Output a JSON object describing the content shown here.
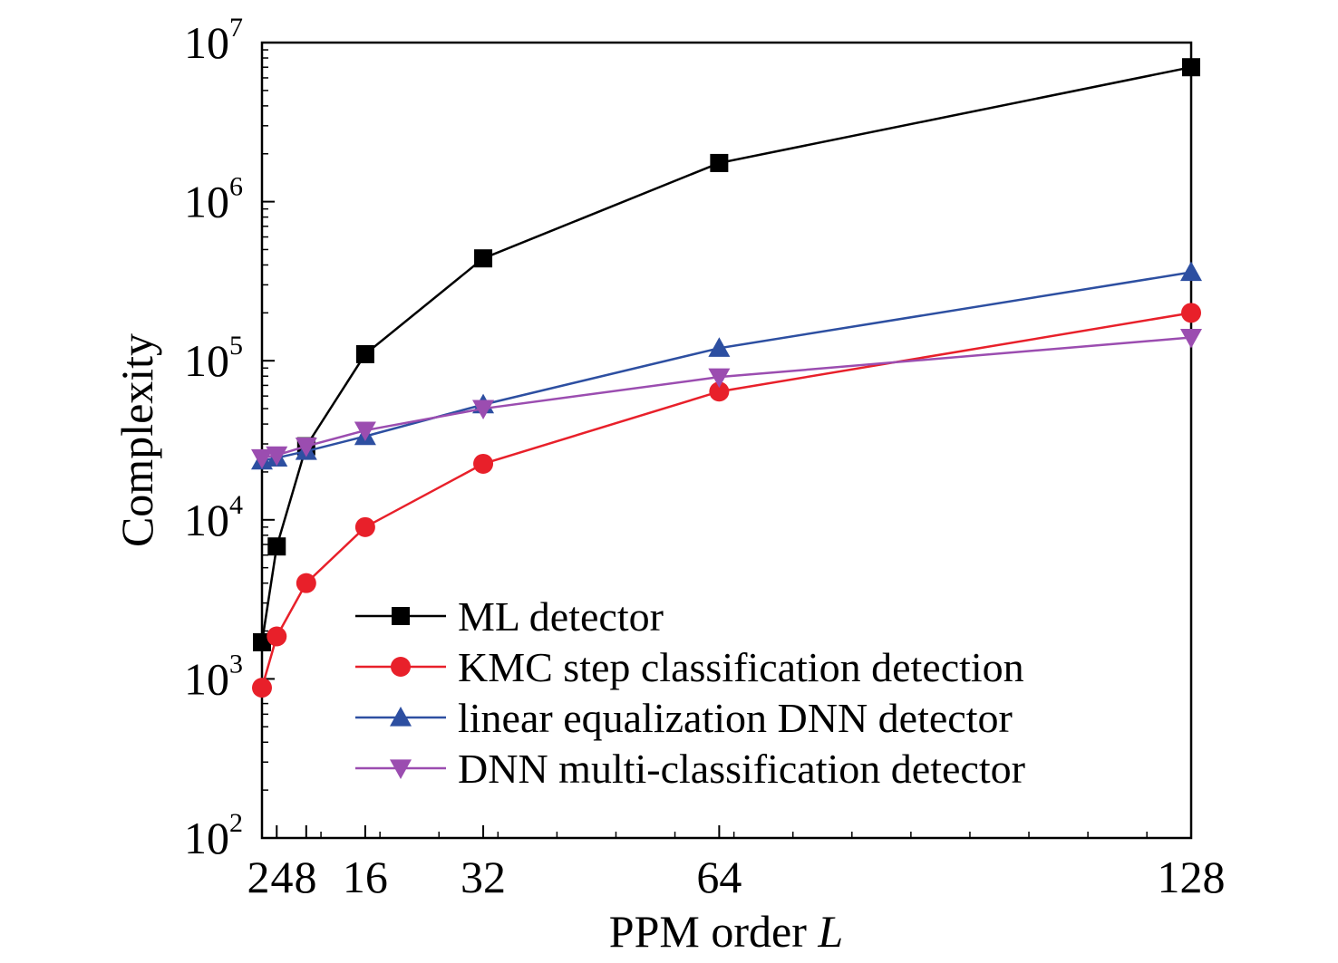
{
  "chart_data": {
    "type": "line",
    "xlabel": "PPM order",
    "xlabel_var": "L",
    "ylabel": "Complexity",
    "x": [
      2,
      4,
      8,
      16,
      32,
      64,
      128
    ],
    "x_ticks": [
      2,
      4,
      8,
      16,
      32,
      64,
      128
    ],
    "x_tick_labels": [
      "2",
      "4",
      "8",
      "16",
      "32",
      "64",
      "128"
    ],
    "y_scale": "log",
    "ylim": [
      100,
      10000000
    ],
    "y_ticks": [
      {
        "value": 100,
        "base": "10",
        "exp": "2"
      },
      {
        "value": 1000,
        "base": "10",
        "exp": "3"
      },
      {
        "value": 10000,
        "base": "10",
        "exp": "4"
      },
      {
        "value": 100000,
        "base": "10",
        "exp": "5"
      },
      {
        "value": 1000000,
        "base": "10",
        "exp": "6"
      },
      {
        "value": 10000000,
        "base": "10",
        "exp": "7"
      }
    ],
    "grid": false,
    "legend_position": "bottom-right",
    "series": [
      {
        "name": "ML detector",
        "color": "#000000",
        "marker": "square",
        "values": [
          1700,
          6800,
          29000,
          110000,
          440000,
          1750000,
          7000000
        ]
      },
      {
        "name": "KMC step classification detection",
        "color": "#e8202a",
        "marker": "circle",
        "values": [
          880,
          1850,
          4000,
          9000,
          22500,
          64000,
          200000
        ]
      },
      {
        "name": "linear equalization DNN detector",
        "color": "#2d4fa1",
        "marker": "triangle-up",
        "values": [
          23500,
          24500,
          27000,
          33500,
          53000,
          120000,
          360000
        ]
      },
      {
        "name": "DNN multi-classification detector",
        "color": "#9b4db0",
        "marker": "triangle-down",
        "values": [
          24500,
          25500,
          29000,
          36500,
          50000,
          79000,
          140000
        ]
      }
    ]
  }
}
